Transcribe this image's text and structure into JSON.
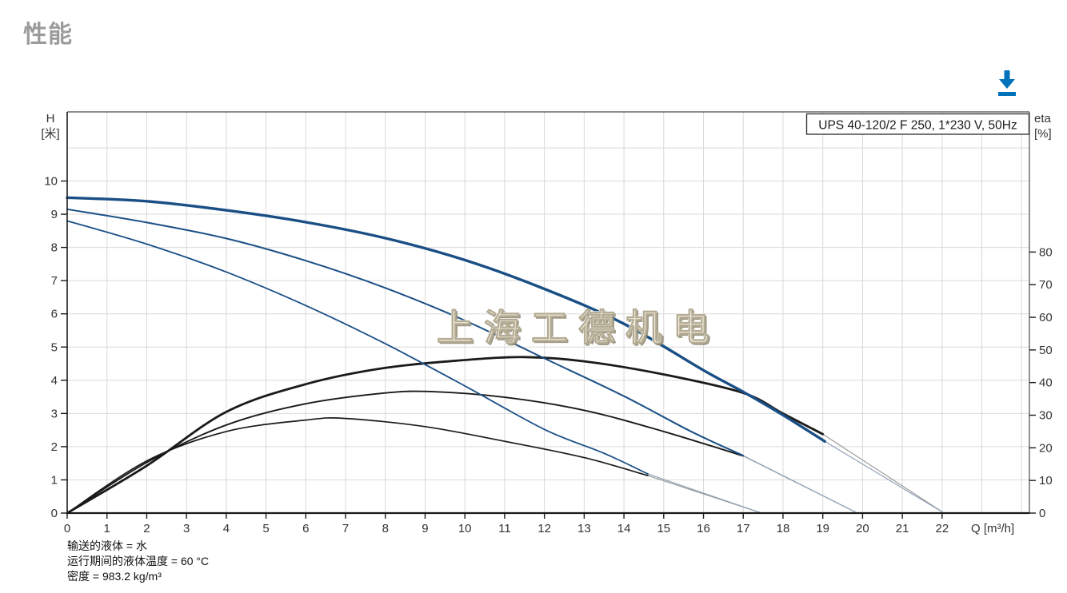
{
  "header": {
    "title": "性能"
  },
  "toolbar": {
    "download_icon": "download-arrow-to-bar"
  },
  "chart_data": {
    "type": "line",
    "pump_label": "UPS 40-120/2 F 250, 1*230 V, 50Hz",
    "watermark": "上海工德机电",
    "x_axis": {
      "label": "Q [m³/h]",
      "min": 0,
      "max": 24.2,
      "ticks": [
        0,
        1,
        2,
        3,
        4,
        5,
        6,
        7,
        8,
        9,
        10,
        11,
        12,
        13,
        14,
        15,
        16,
        17,
        18,
        19,
        20,
        21,
        22
      ]
    },
    "y_left_axis": {
      "label_lines": [
        "H",
        "[米]"
      ],
      "unit": "米",
      "min": 0,
      "max": 12.08,
      "ticks": [
        0,
        1,
        2,
        3,
        4,
        5,
        6,
        7,
        8,
        9,
        10
      ]
    },
    "y_right_axis": {
      "label_lines": [
        "eta",
        "[%]"
      ],
      "unit": "%",
      "min": 0,
      "max": 123,
      "ticks": [
        0,
        10,
        20,
        30,
        40,
        50,
        60,
        70,
        80
      ]
    },
    "grid": true,
    "legend_position": "none",
    "head_curves": [
      {
        "name": "speed-3-head",
        "axis": "left",
        "width": 3.4,
        "points": [
          [
            0,
            9.5
          ],
          [
            2,
            9.39
          ],
          [
            4,
            9.12
          ],
          [
            6,
            8.76
          ],
          [
            8,
            8.28
          ],
          [
            10,
            7.62
          ],
          [
            12,
            6.75
          ],
          [
            14,
            5.7
          ],
          [
            16,
            4.3
          ],
          [
            17,
            3.65
          ],
          [
            18,
            2.95
          ],
          [
            19.05,
            2.16
          ]
        ],
        "extension_end": [
          22.05,
          0
        ]
      },
      {
        "name": "speed-2-head",
        "axis": "left",
        "width": 2.0,
        "points": [
          [
            0,
            9.15
          ],
          [
            2,
            8.75
          ],
          [
            4,
            8.27
          ],
          [
            6,
            7.6
          ],
          [
            8,
            6.78
          ],
          [
            10,
            5.8
          ],
          [
            12,
            4.66
          ],
          [
            14,
            3.52
          ],
          [
            15.7,
            2.45
          ],
          [
            17,
            1.73
          ]
        ],
        "extension_end": [
          19.87,
          0
        ]
      },
      {
        "name": "speed-1-head",
        "axis": "left",
        "width": 1.8,
        "points": [
          [
            0,
            8.8
          ],
          [
            2,
            8.1
          ],
          [
            4,
            7.26
          ],
          [
            6,
            6.25
          ],
          [
            8,
            5.1
          ],
          [
            10,
            3.83
          ],
          [
            12,
            2.52
          ],
          [
            13.5,
            1.8
          ],
          [
            14.6,
            1.18
          ]
        ],
        "extension_end": [
          17.46,
          0
        ]
      }
    ],
    "efficiency_curves": [
      {
        "name": "speed-3-eta",
        "axis": "right",
        "width": 2.8,
        "points": [
          [
            0,
            0
          ],
          [
            2,
            14.5
          ],
          [
            4,
            31
          ],
          [
            6,
            39.5
          ],
          [
            8,
            44.5
          ],
          [
            10,
            46.9
          ],
          [
            11.5,
            47.8
          ],
          [
            13,
            46.5
          ],
          [
            15,
            42.5
          ],
          [
            17,
            36.8
          ],
          [
            18,
            30.5
          ],
          [
            19,
            24.2
          ]
        ],
        "extension_end": [
          22.05,
          0
        ]
      },
      {
        "name": "speed-2-eta",
        "axis": "right",
        "width": 1.9,
        "points": [
          [
            0,
            0
          ],
          [
            2,
            15.5
          ],
          [
            4,
            27
          ],
          [
            6,
            33.5
          ],
          [
            8,
            36.8
          ],
          [
            9.2,
            37.2
          ],
          [
            11,
            35.5
          ],
          [
            13,
            31.5
          ],
          [
            15,
            25
          ],
          [
            17,
            17.5
          ]
        ],
        "extension_end": [
          19.87,
          0
        ]
      },
      {
        "name": "speed-1-eta",
        "axis": "right",
        "width": 1.7,
        "points": [
          [
            0,
            0
          ],
          [
            2,
            16
          ],
          [
            4,
            25
          ],
          [
            6,
            28.5
          ],
          [
            7,
            29
          ],
          [
            9,
            26.5
          ],
          [
            11,
            22
          ],
          [
            13,
            17
          ],
          [
            14.6,
            11.5
          ]
        ],
        "extension_end": [
          17.46,
          0
        ]
      }
    ],
    "colors": {
      "curve_blue": "#1a4f86",
      "curve_black": "#1a1a1a",
      "extension_blue": "#8fa0b5",
      "extension_gray": "#9a9a9a",
      "grid": "#d9d9d9",
      "axis": "#1a1a1a",
      "frame": "#4a4a4a",
      "tick_text": "#333333",
      "watermark_fill": "#efe9da",
      "watermark_edge": "#b3ab93",
      "watermark_shadow": "#8f8870",
      "accent_blue": "#0072bc",
      "title_gray": "#9b9b9b"
    }
  },
  "footer": {
    "lines": [
      "输送的液体 = 水",
      "运行期间的液体温度 = 60 °C",
      "密度 = 983.2 kg/m³"
    ]
  }
}
